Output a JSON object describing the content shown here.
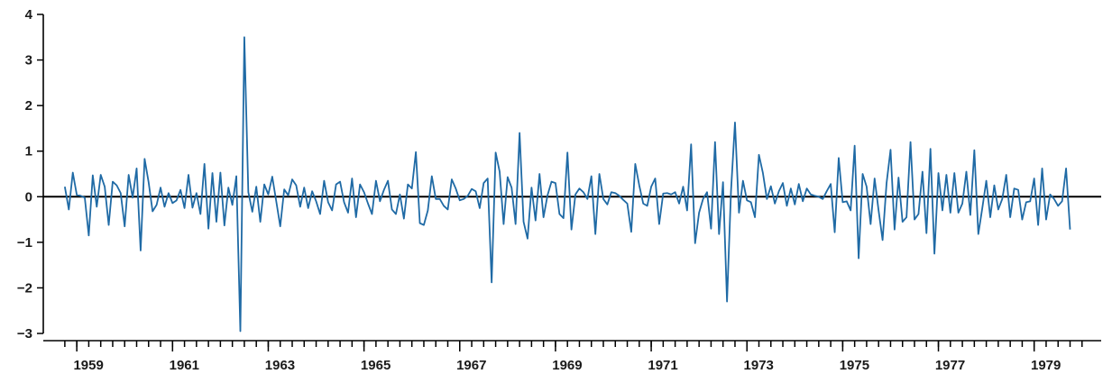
{
  "chart_data": {
    "type": "line",
    "title": "",
    "xlabel": "",
    "ylabel": "",
    "xlim": [
      1958.3,
      1980.4
    ],
    "ylim": [
      -3,
      4
    ],
    "y_ticks": [
      -3,
      -2,
      -1,
      0,
      1,
      2,
      3,
      4
    ],
    "y_tick_labels": [
      "−3",
      "−2",
      "−1",
      "0",
      "1",
      "2",
      "3",
      "4"
    ],
    "x_major_ticks": [
      1959,
      1961,
      1963,
      1965,
      1967,
      1969,
      1971,
      1973,
      1975,
      1977,
      1979
    ],
    "x_tick_labels": [
      "1959",
      "1961",
      "1963",
      "1965",
      "1967",
      "1969",
      "1971",
      "1973",
      "1975",
      "1977",
      "1979"
    ],
    "x_minor_tick_step": 0.25,
    "x_minor_tick_start": 1958.75,
    "x_minor_tick_end": 1980.0,
    "zero_line": true,
    "grid": false,
    "colors": {
      "series": "#1f6aa5",
      "axes": "#000000"
    },
    "series": [
      {
        "name": "",
        "x_start": 1958.75,
        "x_step": 0.0833333,
        "values": [
          0.22,
          -0.28,
          0.53,
          0.04,
          0.02,
          -0.02,
          -0.85,
          0.47,
          -0.22,
          0.48,
          0.22,
          -0.62,
          0.33,
          0.25,
          0.08,
          -0.65,
          0.48,
          -0.02,
          0.62,
          -1.18,
          0.83,
          0.32,
          -0.32,
          -0.18,
          0.2,
          -0.22,
          0.08,
          -0.14,
          -0.08,
          0.15,
          -0.25,
          0.48,
          -0.24,
          0.08,
          -0.38,
          0.72,
          -0.7,
          0.52,
          -0.55,
          0.53,
          -0.63,
          0.2,
          -0.18,
          0.45,
          -2.95,
          3.5,
          0.1,
          -0.33,
          0.22,
          -0.55,
          0.27,
          0.05,
          0.44,
          -0.1,
          -0.65,
          0.16,
          0.03,
          0.38,
          0.25,
          -0.22,
          0.2,
          -0.25,
          0.12,
          -0.1,
          -0.38,
          0.35,
          -0.12,
          -0.3,
          0.27,
          0.33,
          -0.12,
          -0.35,
          0.4,
          -0.45,
          0.27,
          0.1,
          -0.15,
          -0.38,
          0.35,
          -0.1,
          0.15,
          0.35,
          -0.28,
          -0.38,
          0.05,
          -0.48,
          0.27,
          0.18,
          0.98,
          -0.58,
          -0.62,
          -0.3,
          0.45,
          -0.05,
          -0.05,
          -0.2,
          -0.28,
          0.38,
          0.18,
          -0.08,
          -0.05,
          0.02,
          0.17,
          0.12,
          -0.25,
          0.3,
          0.4,
          -1.88,
          0.97,
          0.55,
          -0.6,
          0.43,
          0.2,
          -0.6,
          1.4,
          -0.55,
          -0.92,
          0.2,
          -0.52,
          0.5,
          -0.45,
          0.03,
          0.33,
          0.3,
          -0.38,
          -0.47,
          0.97,
          -0.72,
          0.05,
          0.18,
          0.1,
          -0.05,
          0.45,
          -0.82,
          0.5,
          -0.05,
          -0.17,
          0.1,
          0.08,
          0.02,
          -0.07,
          -0.15,
          -0.77,
          0.72,
          0.25,
          -0.15,
          -0.2,
          0.22,
          0.4,
          -0.6,
          0.07,
          0.08,
          0.05,
          0.1,
          -0.15,
          0.22,
          -0.3,
          1.15,
          -1.02,
          -0.35,
          -0.05,
          0.1,
          -0.7,
          1.2,
          -0.82,
          0.32,
          -2.3,
          0.12,
          1.63,
          -0.35,
          0.35,
          -0.08,
          -0.12,
          -0.45,
          0.92,
          0.52,
          -0.05,
          0.23,
          -0.15,
          0.12,
          0.3,
          -0.2,
          0.18,
          -0.17,
          0.28,
          -0.1,
          0.18,
          0.05,
          0.02,
          0.0,
          -0.05,
          0.12,
          0.28,
          -0.78,
          0.85,
          -0.12,
          -0.1,
          -0.3,
          1.12,
          -1.35,
          0.5,
          0.22,
          -0.6,
          0.4,
          -0.3,
          -0.95,
          0.3,
          1.03,
          -0.72,
          0.42,
          -0.55,
          -0.45,
          1.2,
          -0.5,
          -0.38,
          0.55,
          -0.8,
          1.05,
          -1.25,
          0.52,
          -0.3,
          0.48,
          -0.35,
          0.52,
          -0.35,
          -0.15,
          0.55,
          -0.4,
          1.02,
          -0.82,
          -0.25,
          0.35,
          -0.45,
          0.25,
          -0.28,
          -0.05,
          0.48,
          -0.45,
          0.18,
          0.15,
          -0.5,
          -0.12,
          -0.1,
          0.4,
          -0.62,
          0.62,
          -0.5,
          0.05,
          -0.05,
          -0.2,
          -0.1,
          0.62,
          -0.72
        ]
      }
    ]
  }
}
